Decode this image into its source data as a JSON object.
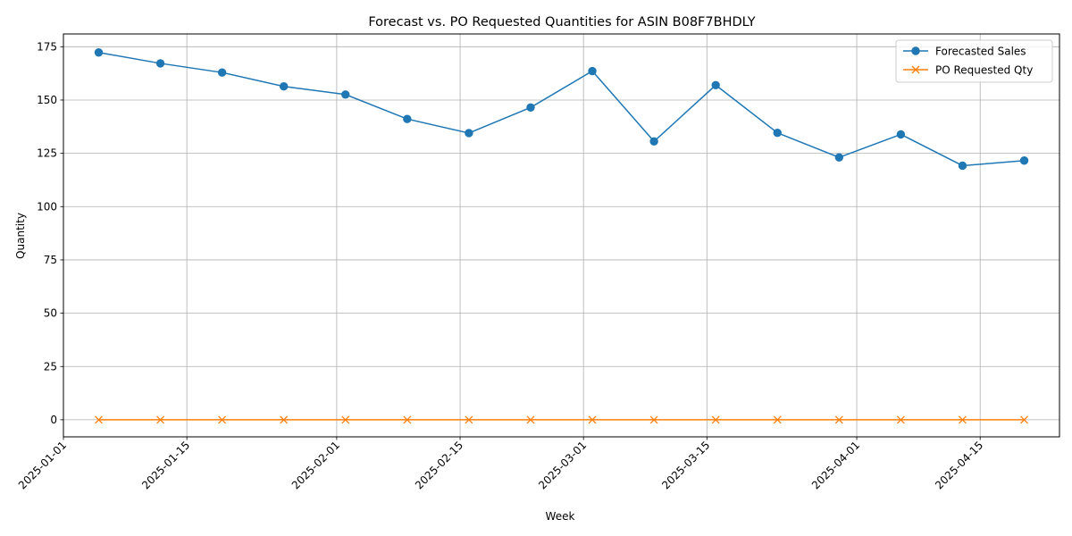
{
  "chart_data": {
    "type": "line",
    "title": "Forecast vs. PO Requested Quantities for ASIN B08F7BHDLY",
    "xlabel": "Week",
    "ylabel": "Quantity",
    "x": [
      "2025-01-05",
      "2025-01-12",
      "2025-01-19",
      "2025-01-26",
      "2025-02-02",
      "2025-02-09",
      "2025-02-16",
      "2025-02-23",
      "2025-03-02",
      "2025-03-09",
      "2025-03-16",
      "2025-03-23",
      "2025-03-30",
      "2025-04-06",
      "2025-04-13",
      "2025-04-20"
    ],
    "xlim": [
      "2025-01-01",
      "2025-04-24"
    ],
    "ylim": [
      -8,
      181
    ],
    "x_ticks": [
      "2025-01-01",
      "2025-01-15",
      "2025-02-01",
      "2025-02-15",
      "2025-03-01",
      "2025-03-15",
      "2025-04-01",
      "2025-04-15"
    ],
    "y_ticks": [
      0,
      25,
      50,
      75,
      100,
      125,
      150,
      175
    ],
    "grid": true,
    "legend_position": "top-right",
    "series": [
      {
        "name": "Forecasted Sales",
        "color": "#1f77b4",
        "marker": "circle",
        "values": [
          172.3,
          167.2,
          162.9,
          156.4,
          152.6,
          141.1,
          134.5,
          146.5,
          163.6,
          130.6,
          157.0,
          134.6,
          123.1,
          133.9,
          119.2,
          121.6
        ]
      },
      {
        "name": "PO Requested Qty",
        "color": "#ff7f0e",
        "marker": "x",
        "values": [
          0,
          0,
          0,
          0,
          0,
          0,
          0,
          0,
          0,
          0,
          0,
          0,
          0,
          0,
          0,
          0
        ]
      }
    ]
  }
}
